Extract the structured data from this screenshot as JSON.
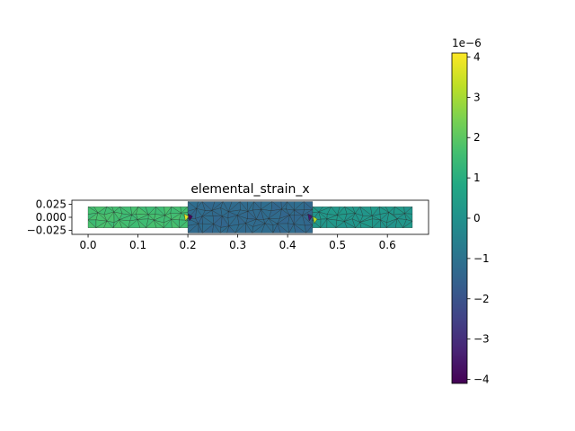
{
  "chart_data": {
    "type": "heatmap",
    "title": "elemental_strain_x",
    "xlabel": "",
    "ylabel": "",
    "xlim": [
      -0.0325,
      0.6825
    ],
    "ylim": [
      -0.0325,
      0.0325
    ],
    "x_ticks": [
      "0.0",
      "0.1",
      "0.2",
      "0.3",
      "0.4",
      "0.5",
      "0.6"
    ],
    "y_ticks": [
      "0.025",
      "0.000",
      "−0.025"
    ],
    "colorbar": {
      "colormap": "viridis",
      "range": [
        -4.1e-06,
        4.1e-06
      ],
      "exponent_label": "1e−6",
      "ticks": [
        "−4",
        "−3",
        "−2",
        "−1",
        "0",
        "1",
        "2",
        "3",
        "4"
      ]
    },
    "regions": [
      {
        "x": [
          0.0,
          0.2
        ],
        "y": [
          -0.02,
          0.02
        ],
        "strain": 1.6e-06
      },
      {
        "x": [
          0.2,
          0.45
        ],
        "y": [
          -0.03,
          0.03
        ],
        "strain": -1.3e-06
      },
      {
        "x": [
          0.45,
          0.65
        ],
        "y": [
          -0.02,
          0.02
        ],
        "strain": 2e-07
      }
    ],
    "hotspots": [
      {
        "x": 0.197,
        "y": 0.0,
        "strain": 3.8e-06
      },
      {
        "x": 0.205,
        "y": 0.0,
        "strain": -4e-06
      },
      {
        "x": 0.445,
        "y": 0.0,
        "strain": -3.6e-06
      },
      {
        "x": 0.455,
        "y": -0.005,
        "strain": 3.2e-06
      }
    ]
  }
}
